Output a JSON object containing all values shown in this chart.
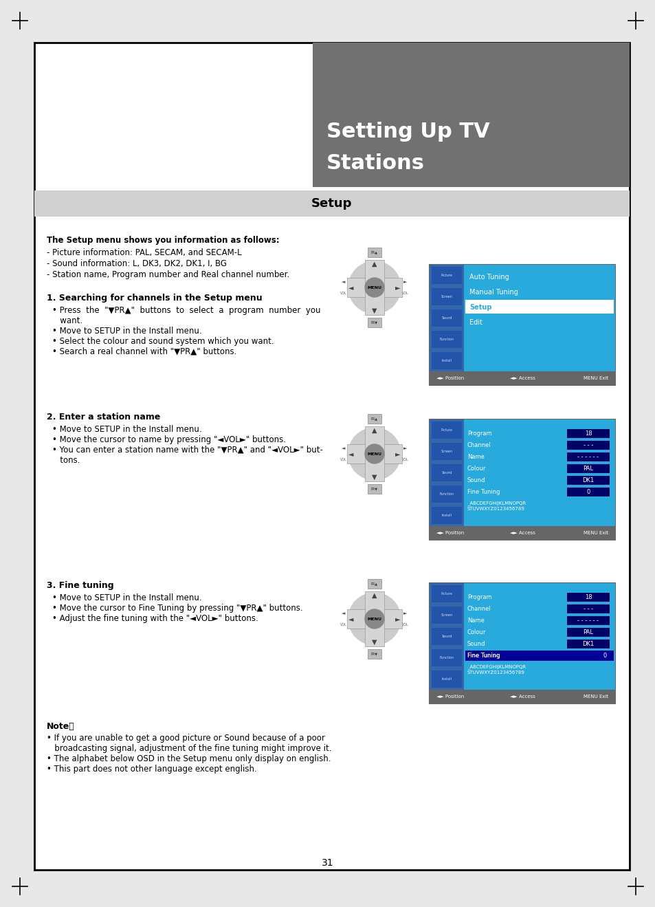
{
  "page_bg": "#ffffff",
  "outer_border_color": "#000000",
  "header_bg": "#717171",
  "header_text_line1": "Setting Up TV",
  "header_text_line2": "Stations",
  "header_text_color": "#ffffff",
  "setup_bar_bg": "#d0d0d0",
  "setup_bar_text": "Setup",
  "setup_bar_text_color": "#000000",
  "body_text_color": "#000000",
  "page_number": "31",
  "screen_bg": "#29aadc",
  "screen_side_bg": "#2060a0",
  "screen_border": "#555555",
  "screen_bottom_bar": "#888888",
  "highlight_white": "#ffffff",
  "highlight_blue_dark": "#003399",
  "remote_body": "#d8d8d8",
  "remote_center": "#888888",
  "remote_dark": "#444444"
}
